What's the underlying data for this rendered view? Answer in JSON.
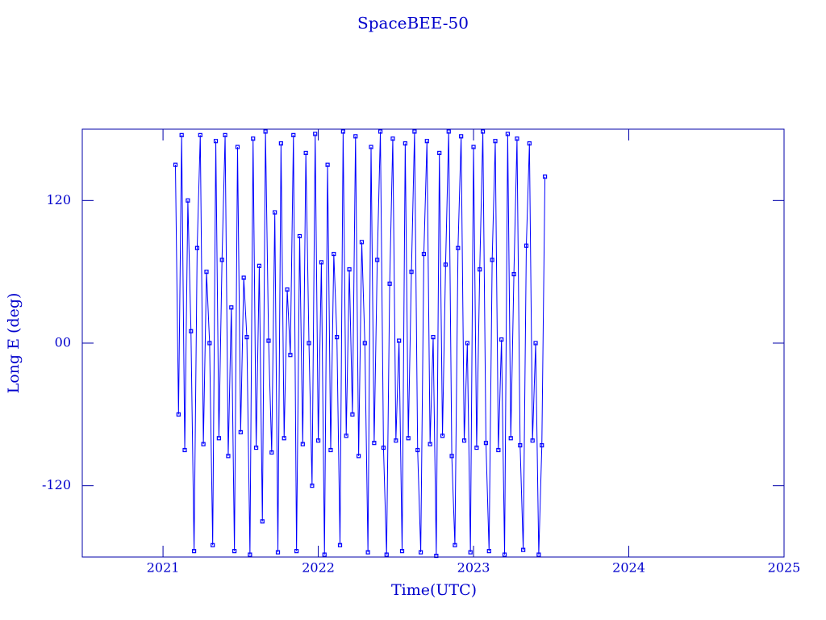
{
  "chart_data": {
    "type": "line",
    "title": "SpaceBEE-50",
    "xlabel": "Time(UTC)",
    "ylabel": "Long E (deg)",
    "color": "#0000ff",
    "markers": true,
    "x": [
      2021.08,
      2021.1,
      2021.12,
      2021.14,
      2021.16,
      2021.18,
      2021.2,
      2021.22,
      2021.24,
      2021.26,
      2021.28,
      2021.3,
      2021.32,
      2021.34,
      2021.36,
      2021.38,
      2021.4,
      2021.42,
      2021.44,
      2021.46,
      2021.48,
      2021.5,
      2021.52,
      2021.54,
      2021.56,
      2021.58,
      2021.6,
      2021.62,
      2021.64,
      2021.66,
      2021.68,
      2021.7,
      2021.72,
      2021.74,
      2021.76,
      2021.78,
      2021.8,
      2021.82,
      2021.84,
      2021.86,
      2021.88,
      2021.9,
      2021.92,
      2021.94,
      2021.96,
      2021.98,
      2022,
      2022.02,
      2022.04,
      2022.06,
      2022.08,
      2022.1,
      2022.12,
      2022.14,
      2022.16,
      2022.18,
      2022.2,
      2022.22,
      2022.24,
      2022.26,
      2022.28,
      2022.3,
      2022.32,
      2022.34,
      2022.36,
      2022.38,
      2022.4,
      2022.42,
      2022.44,
      2022.46,
      2022.48,
      2022.5,
      2022.52,
      2022.54,
      2022.56,
      2022.58,
      2022.6,
      2022.62,
      2022.64,
      2022.66,
      2022.68,
      2022.7,
      2022.72,
      2022.74,
      2022.76,
      2022.78,
      2022.8,
      2022.82,
      2022.84,
      2022.86,
      2022.88,
      2022.9,
      2022.92,
      2022.94,
      2022.96,
      2022.98,
      2023,
      2023.02,
      2023.04,
      2023.06,
      2023.08,
      2023.1,
      2023.12,
      2023.14,
      2023.16,
      2023.18,
      2023.2,
      2023.22,
      2023.24,
      2023.26,
      2023.28,
      2023.3,
      2023.32,
      2023.34,
      2023.36,
      2023.38,
      2023.4,
      2023.42,
      2023.44,
      2023.46
    ],
    "values": [
      150,
      -60,
      175,
      -90,
      120,
      10,
      -175,
      80,
      175,
      -85,
      60,
      0,
      -170,
      170,
      -80,
      70,
      175,
      -95,
      30,
      -175,
      165,
      -75,
      55,
      5,
      -178,
      172,
      -88,
      65,
      -150,
      178,
      2,
      -92,
      110,
      -176,
      168,
      -80,
      45,
      -10,
      175,
      -175,
      90,
      -85,
      160,
      0,
      -120,
      176,
      -82,
      68,
      -178,
      150,
      -90,
      75,
      5,
      -170,
      178,
      -78,
      62,
      -60,
      174,
      -95,
      85,
      0,
      -176,
      165,
      -84,
      70,
      178,
      -88,
      -178,
      50,
      172,
      -82,
      2,
      -175,
      168,
      -80,
      60,
      178,
      -90,
      -176,
      75,
      170,
      -85,
      5,
      -179,
      160,
      -78,
      66,
      178,
      -95,
      -170,
      80,
      174,
      -82,
      0,
      -176,
      165,
      -88,
      62,
      178,
      -84,
      -175,
      70,
      170,
      -90,
      3,
      -178,
      176,
      -80,
      58,
      172,
      -86,
      -174,
      82,
      168,
      -82,
      0,
      -178,
      -86,
      140
    ],
    "xlim": [
      2020.48,
      2025
    ],
    "xticks": [
      2021,
      2022,
      2023,
      2024,
      2025
    ],
    "ylim": [
      -180,
      180
    ],
    "yticks": [
      -120,
      {
        "value": 0,
        "label": "00"
      },
      120
    ]
  }
}
